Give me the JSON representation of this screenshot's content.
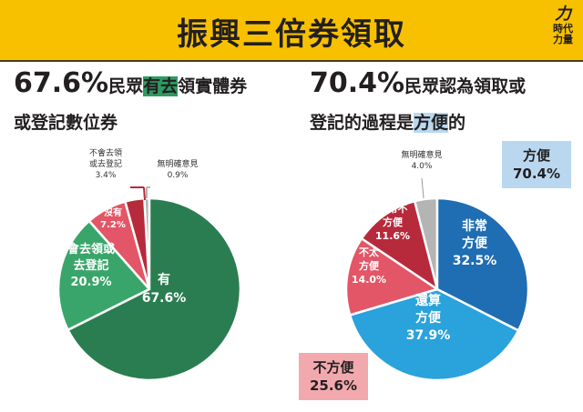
{
  "header": {
    "title": "振興三倍券領取",
    "logo_text": [
      "時代",
      "力量"
    ],
    "logo_mark": "力"
  },
  "left_heading": {
    "pct": "67.6%",
    "pre": "民眾",
    "highlight": "有去",
    "post": "領實體券",
    "line2": "或登記數位券"
  },
  "right_heading": {
    "pct": "70.4%",
    "line1": "民眾認為領取或",
    "pre": "登記的過程是",
    "highlight": "方便",
    "post": "的"
  },
  "summary_boxes": {
    "convenient": {
      "label": "方便",
      "value": "70.4%"
    },
    "inconvenient": {
      "label": "不方便",
      "value": "25.6%"
    }
  },
  "colors": {
    "header": "#f8c100"
  },
  "chart_data": [
    {
      "type": "pie",
      "title": "67.6%民眾有去領實體券或登記數位券",
      "slices": [
        {
          "label": "有",
          "value": 67.6,
          "display": "67.6%",
          "color": "#2a7d50"
        },
        {
          "label": "會去領或去登記",
          "value": 20.9,
          "display": "20.9%",
          "color": "#3aa56a"
        },
        {
          "label": "沒有",
          "value": 7.2,
          "display": "7.2%",
          "color": "#e25667"
        },
        {
          "label": "不會去領或去登記",
          "value": 3.4,
          "display": "3.4%",
          "color": "#b72a3b"
        },
        {
          "label": "無明確意見",
          "value": 0.9,
          "display": "0.9%",
          "color": "#b4b4b4"
        }
      ]
    },
    {
      "type": "pie",
      "title": "70.4%民眾認為領取或登記的過程是方便的",
      "slices": [
        {
          "label": "非常方便",
          "value": 32.5,
          "display": "32.5%",
          "color": "#1f6db2"
        },
        {
          "label": "還算方便",
          "value": 37.9,
          "display": "37.9%",
          "color": "#2aa2dc"
        },
        {
          "label": "不太方便",
          "value": 14.0,
          "display": "14.0%",
          "color": "#e25667"
        },
        {
          "label": "非常不方便",
          "value": 11.6,
          "display": "11.6%",
          "color": "#b72a3b"
        },
        {
          "label": "無明確意見",
          "value": 4.0,
          "display": "4.0%",
          "color": "#b4b4b4"
        }
      ]
    }
  ]
}
